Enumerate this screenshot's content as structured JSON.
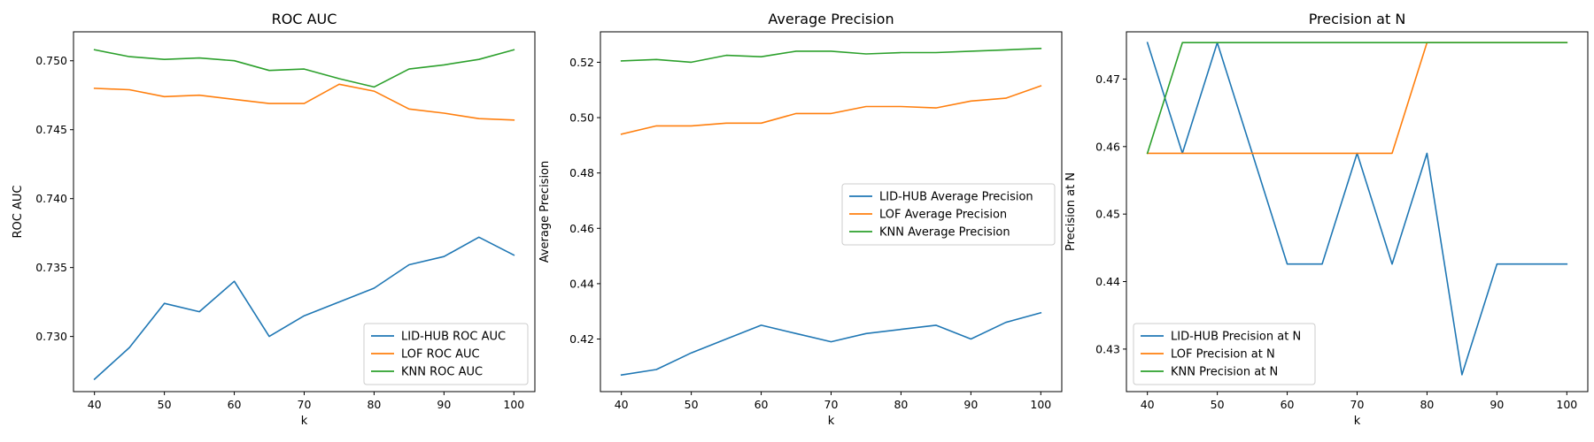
{
  "chart_data": [
    {
      "type": "line",
      "title": "ROC AUC",
      "xlabel": "k",
      "ylabel": "ROC AUC",
      "x": [
        40,
        45,
        50,
        55,
        60,
        65,
        70,
        75,
        80,
        85,
        90,
        95,
        100
      ],
      "xticks": [
        40,
        50,
        60,
        70,
        80,
        90,
        100
      ],
      "xtick_labels": [
        "40",
        "50",
        "60",
        "70",
        "80",
        "90",
        "100"
      ],
      "xlim": [
        37,
        103
      ],
      "ylim": [
        0.726,
        0.7521
      ],
      "yticks": [
        0.73,
        0.735,
        0.74,
        0.745,
        0.75
      ],
      "ytick_labels": [
        "0.730",
        "0.735",
        "0.740",
        "0.745",
        "0.750"
      ],
      "legend_loc": "lower-right",
      "series": [
        {
          "name": "LID-HUB ROC AUC",
          "color": "#1f77b4",
          "values": [
            0.7269,
            0.7292,
            0.7324,
            0.7318,
            0.734,
            0.73,
            0.7315,
            0.7325,
            0.7335,
            0.7352,
            0.7358,
            0.7372,
            0.7359
          ]
        },
        {
          "name": "LOF ROC AUC",
          "color": "#ff7f0e",
          "values": [
            0.748,
            0.7479,
            0.7474,
            0.7475,
            0.7472,
            0.7469,
            0.7469,
            0.7483,
            0.7478,
            0.7465,
            0.7462,
            0.7458,
            0.7457
          ]
        },
        {
          "name": "KNN ROC AUC",
          "color": "#2ca02c",
          "values": [
            0.7508,
            0.7503,
            0.7501,
            0.7502,
            0.75,
            0.7493,
            0.7494,
            0.7487,
            0.7481,
            0.7494,
            0.7497,
            0.7501,
            0.7508
          ]
        }
      ]
    },
    {
      "type": "line",
      "title": "Average Precision",
      "xlabel": "k",
      "ylabel": "Average Precision",
      "x": [
        40,
        45,
        50,
        55,
        60,
        65,
        70,
        75,
        80,
        85,
        90,
        95,
        100
      ],
      "xticks": [
        40,
        50,
        60,
        70,
        80,
        90,
        100
      ],
      "xtick_labels": [
        "40",
        "50",
        "60",
        "70",
        "80",
        "90",
        "100"
      ],
      "xlim": [
        37,
        103
      ],
      "ylim": [
        0.401,
        0.531
      ],
      "yticks": [
        0.42,
        0.44,
        0.46,
        0.48,
        0.5,
        0.52
      ],
      "ytick_labels": [
        "0.42",
        "0.44",
        "0.46",
        "0.48",
        "0.50",
        "0.52"
      ],
      "legend_loc": "center-right",
      "series": [
        {
          "name": "LID-HUB Average Precision",
          "color": "#1f77b4",
          "values": [
            0.407,
            0.409,
            0.415,
            0.42,
            0.425,
            0.422,
            0.419,
            0.422,
            0.4235,
            0.425,
            0.42,
            0.426,
            0.4295
          ]
        },
        {
          "name": "LOF Average Precision",
          "color": "#ff7f0e",
          "values": [
            0.494,
            0.497,
            0.497,
            0.498,
            0.498,
            0.5015,
            0.5015,
            0.504,
            0.504,
            0.5035,
            0.506,
            0.507,
            0.5115
          ]
        },
        {
          "name": "KNN Average Precision",
          "color": "#2ca02c",
          "values": [
            0.5205,
            0.521,
            0.52,
            0.5225,
            0.522,
            0.524,
            0.524,
            0.523,
            0.5235,
            0.5235,
            0.524,
            0.5245,
            0.525
          ]
        }
      ]
    },
    {
      "type": "line",
      "title": "Precision at N",
      "xlabel": "k",
      "ylabel": "Precision at N",
      "x": [
        40,
        45,
        50,
        55,
        60,
        65,
        70,
        75,
        80,
        85,
        90,
        95,
        100
      ],
      "xticks": [
        40,
        50,
        60,
        70,
        80,
        90,
        100
      ],
      "xtick_labels": [
        "40",
        "50",
        "60",
        "70",
        "80",
        "90",
        "100"
      ],
      "xlim": [
        37,
        103
      ],
      "ylim": [
        0.4237,
        0.477
      ],
      "yticks": [
        0.43,
        0.44,
        0.45,
        0.46,
        0.47
      ],
      "ytick_labels": [
        "0.43",
        "0.44",
        "0.45",
        "0.46",
        "0.47"
      ],
      "legend_loc": "lower-left",
      "series": [
        {
          "name": "LID-HUB Precision at N",
          "color": "#1f77b4",
          "values": [
            0.4754,
            0.459,
            0.4754,
            0.459,
            0.4426,
            0.4426,
            0.459,
            0.4426,
            0.459,
            0.4262,
            0.4426,
            0.4426,
            0.4426
          ]
        },
        {
          "name": "LOF Precision at N",
          "color": "#ff7f0e",
          "values": [
            0.459,
            0.459,
            0.459,
            0.459,
            0.459,
            0.459,
            0.459,
            0.459,
            0.4754,
            0.4754,
            0.4754,
            0.4754,
            0.4754
          ]
        },
        {
          "name": "KNN Precision at N",
          "color": "#2ca02c",
          "values": [
            0.459,
            0.4754,
            0.4754,
            0.4754,
            0.4754,
            0.4754,
            0.4754,
            0.4754,
            0.4754,
            0.4754,
            0.4754,
            0.4754,
            0.4754
          ]
        }
      ]
    }
  ]
}
